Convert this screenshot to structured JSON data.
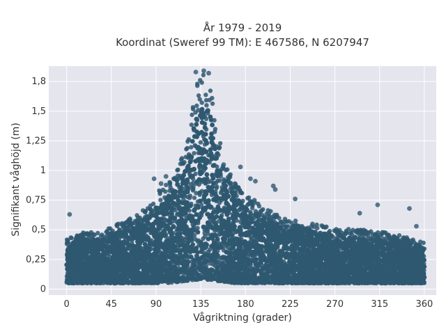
{
  "chart_data": {
    "type": "scatter",
    "title": [
      "År 1979 - 2019",
      "Koordinat (Sweref 99 TM): E 467586, N 6207947"
    ],
    "xlabel": "Vågriktning (grader)",
    "ylabel": "Signifikant våghöjd (m)",
    "xlim": [
      -18,
      372
    ],
    "ylim": [
      -0.05,
      1.88
    ],
    "xticks": [
      0,
      45,
      90,
      135,
      180,
      225,
      270,
      315,
      360
    ],
    "xtick_labels": [
      "0",
      "45",
      "90",
      "135",
      "180",
      "225",
      "270",
      "315",
      "360"
    ],
    "yticks": [
      0,
      0.25,
      0.5,
      0.75,
      1,
      1.25,
      1.5,
      1.75
    ],
    "ytick_labels": [
      "0",
      "0,25",
      "0,5",
      "0,75",
      "1",
      "1,25",
      "1,5",
      "1,8"
    ],
    "grid": true,
    "point_color": "#2e5870",
    "background_color": "#e5e5ee",
    "envelope": {
      "x": [
        0,
        10,
        20,
        30,
        40,
        50,
        60,
        70,
        80,
        90,
        100,
        110,
        120,
        130,
        135,
        140,
        145,
        150,
        160,
        170,
        180,
        190,
        200,
        210,
        220,
        230,
        240,
        250,
        260,
        270,
        280,
        290,
        300,
        310,
        320,
        330,
        340,
        350,
        360
      ],
      "min": [
        0.05,
        0.05,
        0.05,
        0.05,
        0.05,
        0.05,
        0.05,
        0.05,
        0.05,
        0.05,
        0.05,
        0.06,
        0.07,
        0.08,
        0.08,
        0.08,
        0.08,
        0.07,
        0.06,
        0.05,
        0.05,
        0.05,
        0.05,
        0.05,
        0.05,
        0.05,
        0.05,
        0.05,
        0.05,
        0.05,
        0.05,
        0.05,
        0.05,
        0.05,
        0.05,
        0.05,
        0.05,
        0.05,
        0.05
      ],
      "max": [
        0.42,
        0.47,
        0.48,
        0.48,
        0.5,
        0.55,
        0.58,
        0.62,
        0.7,
        0.8,
        0.9,
        1.0,
        1.2,
        1.7,
        1.82,
        1.82,
        1.72,
        1.4,
        1.05,
        0.9,
        0.8,
        0.75,
        0.68,
        0.64,
        0.6,
        0.58,
        0.57,
        0.55,
        0.54,
        0.52,
        0.52,
        0.5,
        0.5,
        0.48,
        0.48,
        0.46,
        0.45,
        0.42,
        0.4
      ]
    },
    "outliers": [
      {
        "x": 3,
        "y": 0.63
      },
      {
        "x": 88,
        "y": 0.93
      },
      {
        "x": 95,
        "y": 0.89
      },
      {
        "x": 100,
        "y": 0.95
      },
      {
        "x": 158,
        "y": 1.05
      },
      {
        "x": 175,
        "y": 1.03
      },
      {
        "x": 185,
        "y": 0.93
      },
      {
        "x": 190,
        "y": 0.91
      },
      {
        "x": 208,
        "y": 0.87
      },
      {
        "x": 210,
        "y": 0.84
      },
      {
        "x": 230,
        "y": 0.76
      },
      {
        "x": 295,
        "y": 0.64
      },
      {
        "x": 313,
        "y": 0.71
      },
      {
        "x": 345,
        "y": 0.68
      },
      {
        "x": 352,
        "y": 0.53
      },
      {
        "x": 130,
        "y": 1.83
      },
      {
        "x": 138,
        "y": 1.84
      },
      {
        "x": 143,
        "y": 1.82
      }
    ]
  }
}
